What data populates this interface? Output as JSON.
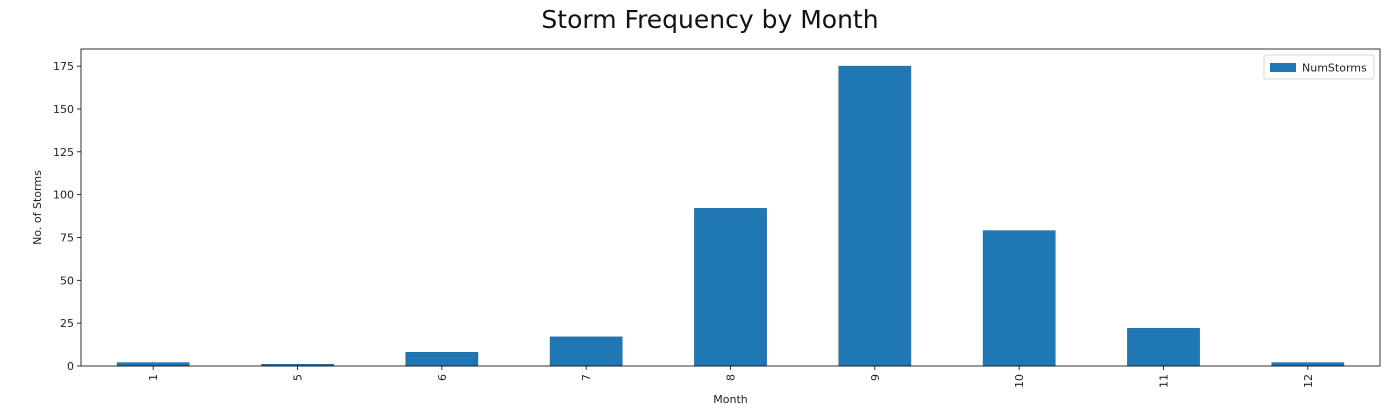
{
  "chart_data": {
    "type": "bar",
    "title": "Storm Frequency by Month",
    "xlabel": "Month",
    "ylabel": "No. of Storms",
    "categories": [
      "1",
      "5",
      "6",
      "7",
      "8",
      "9",
      "10",
      "11",
      "12"
    ],
    "series": [
      {
        "name": "NumStorms",
        "values": [
          2,
          1,
          8,
          17,
          92,
          175,
          79,
          22,
          2
        ],
        "color": "#1f77b4"
      }
    ],
    "ylim": [
      0,
      185
    ],
    "yticks": [
      0,
      25,
      50,
      75,
      100,
      125,
      150,
      175
    ],
    "grid": false,
    "legend_position": "top-right",
    "xtick_rotation": "vertical"
  }
}
